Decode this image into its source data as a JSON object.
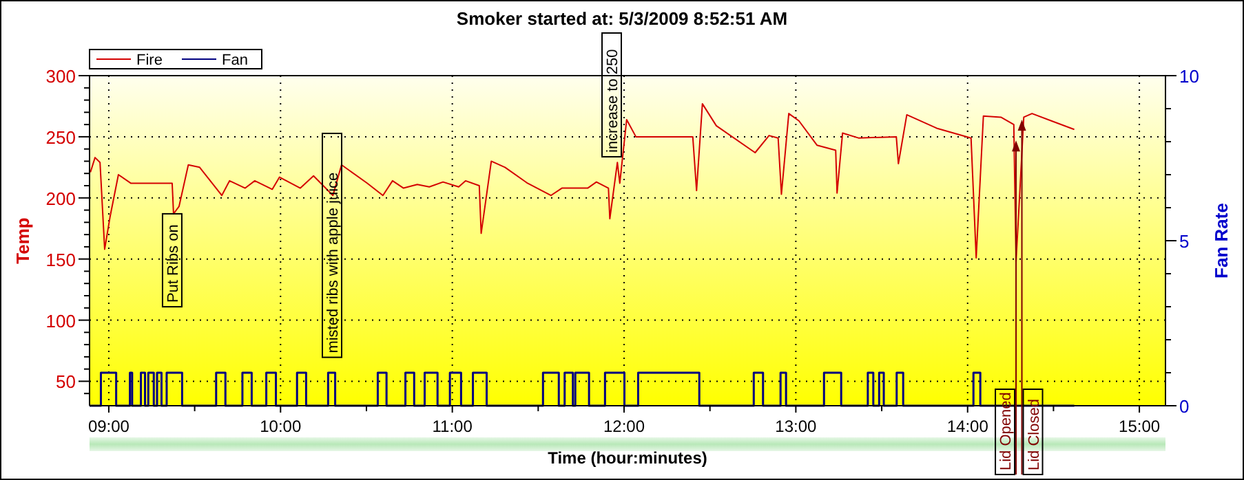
{
  "chart_data": {
    "type": "line",
    "title": "Smoker started at: 5/3/2009 8:52:51 AM",
    "xlabel": "Time (hour:minutes)",
    "ylabel": "Temp",
    "y2label": "Fan Rate",
    "xlim": [
      8.888,
      15.152
    ],
    "xticks": [
      {
        "value": 9,
        "label": "09:00"
      },
      {
        "value": 9.5,
        "label": null
      },
      {
        "value": 10,
        "label": "10:00"
      },
      {
        "value": 10.5,
        "label": null
      },
      {
        "value": 11,
        "label": "11:00"
      },
      {
        "value": 11.5,
        "label": null
      },
      {
        "value": 12,
        "label": "12:00"
      },
      {
        "value": 12.5,
        "label": null
      },
      {
        "value": 13,
        "label": "13:00"
      },
      {
        "value": 13.5,
        "label": null
      },
      {
        "value": 14,
        "label": "14:00"
      },
      {
        "value": 14.5,
        "label": null
      },
      {
        "value": 15,
        "label": "15:00"
      }
    ],
    "ylim": [
      30,
      300
    ],
    "yticks": [
      {
        "value": 40,
        "label": null
      },
      50,
      {
        "value": 60,
        "label": null
      },
      {
        "value": 70,
        "label": null
      },
      {
        "value": 80,
        "label": null
      },
      {
        "value": 90,
        "label": null
      },
      100,
      {
        "value": 110,
        "label": null
      },
      {
        "value": 120,
        "label": null
      },
      {
        "value": 130,
        "label": null
      },
      {
        "value": 140,
        "label": null
      },
      150,
      {
        "value": 160,
        "label": null
      },
      {
        "value": 170,
        "label": null
      },
      {
        "value": 180,
        "label": null
      },
      {
        "value": 190,
        "label": null
      },
      200,
      {
        "value": 210,
        "label": null
      },
      {
        "value": 220,
        "label": null
      },
      {
        "value": 230,
        "label": null
      },
      {
        "value": 240,
        "label": null
      },
      250,
      {
        "value": 260,
        "label": null
      },
      {
        "value": 270,
        "label": null
      },
      {
        "value": 280,
        "label": null
      },
      {
        "value": 290,
        "label": null
      },
      300
    ],
    "y2lim": [
      0,
      10
    ],
    "y2ticks": [
      0,
      {
        "value": 1,
        "label": null
      },
      {
        "value": 2,
        "label": null
      },
      {
        "value": 3,
        "label": null
      },
      {
        "value": 4,
        "label": null
      },
      5,
      {
        "value": 6,
        "label": null
      },
      {
        "value": 7,
        "label": null
      },
      {
        "value": 8,
        "label": null
      },
      {
        "value": 9,
        "label": null
      },
      10
    ],
    "grid": true,
    "legend": "top left",
    "series": [
      {
        "name": "Fire",
        "color": "#d40000",
        "x": [
          8.893,
          8.92,
          8.949,
          8.976,
          9.008,
          9.056,
          9.128,
          9.369,
          9.377,
          9.409,
          9.463,
          9.529,
          9.658,
          9.703,
          9.794,
          9.85,
          9.952,
          9.994,
          10.115,
          10.192,
          10.305,
          10.355,
          10.505,
          10.596,
          10.652,
          10.716,
          10.796,
          10.866,
          10.946,
          11.037,
          11.077,
          11.157,
          11.168,
          11.227,
          11.307,
          11.438,
          11.574,
          11.638,
          11.788,
          11.839,
          11.909,
          11.917,
          11.961,
          11.975,
          12.015,
          12.069,
          12.4,
          12.422,
          12.456,
          12.537,
          12.763,
          12.844,
          12.897,
          12.916,
          12.959,
          13.018,
          13.124,
          13.232,
          13.24,
          13.272,
          13.365,
          13.585,
          13.597,
          13.646,
          13.82,
          14.02,
          14.05,
          14.092,
          14.194,
          14.269,
          14.282,
          14.301,
          14.327,
          14.375,
          14.621
        ],
        "values": [
          221,
          233,
          229,
          158,
          185,
          219,
          212,
          212,
          187,
          193,
          227,
          225,
          202,
          214,
          208,
          214,
          207,
          217,
          208,
          218,
          202,
          227,
          212,
          202,
          214,
          208,
          211,
          209,
          213,
          209,
          214,
          210,
          171,
          230,
          225,
          212,
          202,
          208,
          208,
          213,
          208,
          183,
          229,
          212,
          264,
          250,
          250,
          206,
          277,
          259,
          237,
          251,
          249,
          203,
          269,
          263,
          243,
          239,
          204,
          253,
          249,
          250,
          228,
          268,
          257,
          249,
          151,
          267,
          266,
          260,
          148,
          197,
          266,
          269,
          256
        ]
      },
      {
        "name": "Fan",
        "color": "#000080",
        "type": "step",
        "axis": "y2",
        "x": [
          8.888,
          8.954,
          9.043,
          9.123,
          9.136,
          9.187,
          9.211,
          9.23,
          9.262,
          9.281,
          9.307,
          9.337,
          9.427,
          9.625,
          9.679,
          9.778,
          9.832,
          9.917,
          9.973,
          10.096,
          10.149,
          10.277,
          10.318,
          10.566,
          10.617,
          10.727,
          10.778,
          10.839,
          10.914,
          10.986,
          11.051,
          11.12,
          11.2,
          11.528,
          11.62,
          11.654,
          11.702,
          11.716,
          11.796,
          11.889,
          12.002,
          12.082,
          12.438,
          12.755,
          12.809,
          12.911,
          12.943,
          13.164,
          13.264,
          13.419,
          13.451,
          13.485,
          13.512,
          13.587,
          13.625,
          14.034,
          14.074,
          14.621
        ],
        "values": [
          0,
          1,
          0,
          1,
          0,
          1,
          0,
          1,
          0,
          1,
          0,
          1,
          0,
          1,
          0,
          1,
          0,
          1,
          0,
          1,
          0,
          1,
          0,
          1,
          0,
          1,
          0,
          1,
          0,
          1,
          0,
          1,
          0,
          1,
          0,
          1,
          0,
          1,
          0,
          1,
          0,
          1,
          0,
          1,
          0,
          1,
          0,
          1,
          0,
          1,
          0,
          1,
          0,
          1,
          0,
          1,
          0,
          0
        ]
      }
    ],
    "annotations": [
      {
        "text": "Put Ribs on",
        "x": 9.369,
        "y": 187
      },
      "misted ribs with apple juice",
      "increase to 250",
      {
        "text": "Lid Opened",
        "x": 14.282,
        "y": 247
      },
      {
        "text": "Lid Closed",
        "x": 14.316,
        "y": 264
      }
    ]
  }
}
